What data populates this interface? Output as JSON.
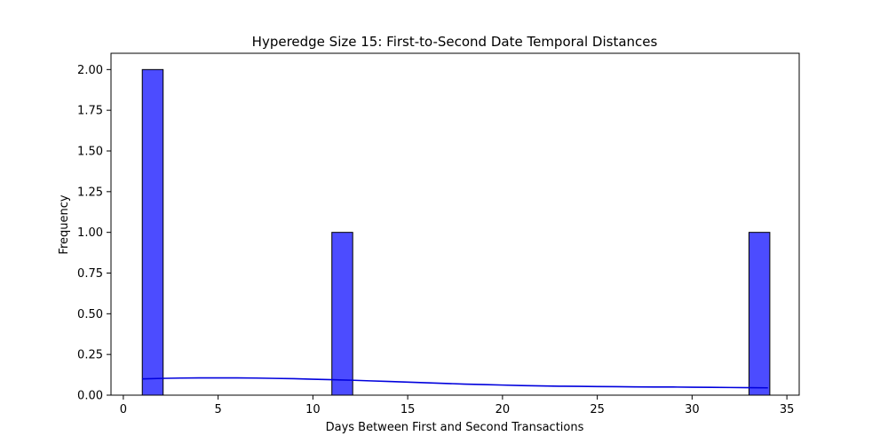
{
  "chart_data": {
    "type": "bar",
    "title": "Hyperedge Size 15: First-to-Second Date Temporal Distances",
    "xlabel": "Days Between First and Second Transactions",
    "ylabel": "Frequency",
    "xlim": [
      -0.65,
      35.65
    ],
    "ylim": [
      0,
      2.1
    ],
    "xticks": [
      0,
      5,
      10,
      15,
      20,
      25,
      30,
      35
    ],
    "yticks": [
      0.0,
      0.25,
      0.5,
      0.75,
      1.0,
      1.25,
      1.5,
      1.75,
      2.0
    ],
    "ytick_labels": [
      "0.00",
      "0.25",
      "0.50",
      "0.75",
      "1.00",
      "1.25",
      "1.50",
      "1.75",
      "2.00"
    ],
    "bin_width": 1.1,
    "bins": [
      {
        "x0": 1.0,
        "x1": 2.1,
        "count": 2
      },
      {
        "x0": 11.0,
        "x1": 12.1,
        "count": 1
      },
      {
        "x0": 33.0,
        "x1": 34.1,
        "count": 1
      }
    ],
    "kde": {
      "x": [
        1,
        2,
        3,
        4,
        5,
        6,
        7,
        8,
        9,
        10,
        11,
        12,
        13,
        14,
        15,
        16,
        17,
        18,
        19,
        20,
        21,
        22,
        23,
        24,
        25,
        26,
        27,
        28,
        29,
        30,
        31,
        32,
        33,
        34
      ],
      "y": [
        0.1,
        0.103,
        0.105,
        0.106,
        0.106,
        0.106,
        0.105,
        0.103,
        0.101,
        0.098,
        0.095,
        0.092,
        0.088,
        0.084,
        0.08,
        0.076,
        0.072,
        0.068,
        0.065,
        0.062,
        0.059,
        0.057,
        0.055,
        0.054,
        0.053,
        0.052,
        0.051,
        0.05,
        0.05,
        0.049,
        0.048,
        0.047,
        0.046,
        0.045
      ]
    },
    "colors": {
      "bar_fill": "#4c4cff",
      "bar_edge": "#000000",
      "kde_line": "#0000dd"
    },
    "grid": false,
    "legend": "none"
  }
}
